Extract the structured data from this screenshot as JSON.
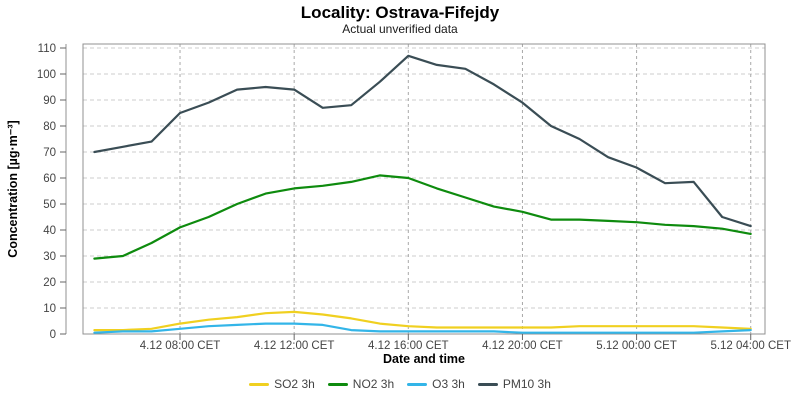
{
  "header": {
    "title": "Locality: Ostrava-Fifejdy",
    "subtitle": "Actual unverified data"
  },
  "chart_data": {
    "type": "line",
    "title": "Locality: Ostrava-Fifejdy",
    "subtitle": "Actual unverified data",
    "xlabel": "Date and time",
    "ylabel": "Concentration [µg·m⁻³]",
    "ylim": [
      0,
      110
    ],
    "xlim": [
      4.6,
      28.5
    ],
    "grid": "dashed",
    "legend_position": "bottom",
    "y_ticks": [
      0,
      10,
      20,
      30,
      40,
      50,
      60,
      70,
      80,
      90,
      100,
      110
    ],
    "x_ticks": [
      {
        "hour": 8,
        "label": "4.12 08:00 CET"
      },
      {
        "hour": 12,
        "label": "4.12 12:00 CET"
      },
      {
        "hour": 16,
        "label": "4.12 16:00 CET"
      },
      {
        "hour": 20,
        "label": "4.12 20:00 CET"
      },
      {
        "hour": 24,
        "label": "5.12 00:00 CET"
      },
      {
        "hour": 28,
        "label": "5.12 04:00 CET"
      }
    ],
    "x_unit_note": "hours since 4.12 00:00 CET, hourly points 05:00 to next-day 04:00",
    "x": [
      5,
      6,
      7,
      8,
      9,
      10,
      11,
      12,
      13,
      14,
      15,
      16,
      17,
      18,
      19,
      20,
      21,
      22,
      23,
      24,
      25,
      26,
      27,
      28
    ],
    "series": [
      {
        "name": "SO2 3h",
        "color": "#f0d020",
        "values": [
          1.5,
          1.5,
          2,
          4,
          5.5,
          6.5,
          8,
          8.5,
          7.5,
          6,
          4,
          3,
          2.5,
          2.5,
          2.5,
          2.5,
          2.5,
          3,
          3,
          3,
          3,
          3,
          2.5,
          2
        ]
      },
      {
        "name": "NO2 3h",
        "color": "#0e8b0e",
        "values": [
          29,
          30,
          35,
          41,
          45,
          50,
          54,
          56,
          57,
          58.5,
          61,
          60,
          56,
          52.5,
          49,
          47,
          44,
          44,
          43.5,
          43,
          42,
          41.5,
          40.5,
          38.5
        ]
      },
      {
        "name": "O3 3h",
        "color": "#33b5e8",
        "values": [
          0.5,
          1,
          1,
          2,
          3,
          3.5,
          4,
          4,
          3.5,
          1.5,
          1,
          1,
          1,
          1,
          1,
          0.5,
          0.5,
          0.5,
          0.5,
          0.5,
          0.5,
          0.5,
          1,
          1.5
        ]
      },
      {
        "name": "PM10 3h",
        "color": "#3a4d55",
        "values": [
          70,
          72,
          74,
          85,
          89,
          94,
          95,
          94,
          87,
          88,
          97,
          107,
          103.5,
          102,
          96,
          89,
          80,
          75,
          68,
          64,
          58,
          58.5,
          45,
          41.5
        ]
      }
    ]
  }
}
